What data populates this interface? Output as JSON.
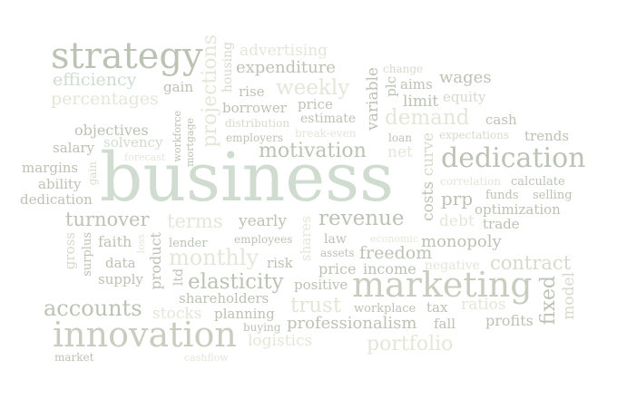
{
  "words": {
    "strategy": "strategy",
    "efficiency": "efficiency",
    "percentages": "percentages",
    "gain": "gain",
    "projections": "projections",
    "housing": "housing",
    "advertising": "advertising",
    "expenditure": "expenditure",
    "weekly": "weekly",
    "rise": "rise",
    "borrower": "borrower",
    "distribution": "distribution",
    "employers": "employers",
    "price": "price",
    "estimate": "estimate",
    "variable": "variable",
    "plc": "plc",
    "change": "change",
    "aims": "aims",
    "wages": "wages",
    "limit": "limit",
    "equity": "equity",
    "demand": "demand",
    "cash": "cash",
    "break_even": "break-even",
    "loan": "loan",
    "expectations": "expectations",
    "trends": "trends",
    "objectives": "objectives",
    "salary": "salary",
    "solvency": "solvency",
    "forecast": "forecast",
    "workforce": "workforce",
    "mortgage": "mortgage",
    "margins": "margins",
    "ability": "ability",
    "dedication_small": "dedication",
    "gain_v": "gain",
    "business": "business",
    "motivation": "motivation",
    "net": "net",
    "curve": "curve",
    "costs": "costs",
    "dedication_big": "dedication",
    "correlation": "correlation",
    "calculate": "calculate",
    "prp": "prp",
    "funds": "funds",
    "selling": "selling",
    "optimization": "optimization",
    "turnover": "turnover",
    "terms": "terms",
    "yearly": "yearly",
    "revenue": "revenue",
    "debt": "debt",
    "trade": "trade",
    "gross": "gross",
    "surplus": "surplus",
    "faith": "faith",
    "loss": "loss",
    "product": "product",
    "lender": "lender",
    "monthly": "monthly",
    "employees": "employees",
    "shares": "shares",
    "law": "law",
    "economic": "economic",
    "monopoly": "monopoly",
    "assets": "assets",
    "freedom": "freedom",
    "data": "data",
    "risk": "risk",
    "price2": "price",
    "income": "income",
    "negative": "negative",
    "contract": "contract",
    "supply": "supply",
    "ltd": "ltd",
    "elasticity": "elasticity",
    "positive": "positive",
    "marketing": "marketing",
    "shareholders": "shareholders",
    "fixed": "fixed",
    "model": "model",
    "accounts": "accounts",
    "stocks": "stocks",
    "planning": "planning",
    "trust": "trust",
    "workplace": "workplace",
    "tax": "tax",
    "ratios": "ratios",
    "buying": "buying",
    "professionalism": "professionalism",
    "fall": "fall",
    "profits": "profits",
    "innovation": "innovation",
    "logistics": "logistics",
    "portfolio": "portfolio",
    "market": "market",
    "cashflow": "cashflow"
  },
  "colors": {
    "background": "#ffffff",
    "grey_green_mid": "#c9cdbf",
    "grey_green_light": "#d6dacd",
    "grey_dark": "#bcc2b4",
    "very_light": "#e4e6d9",
    "green_tint": "#cfdccf"
  }
}
